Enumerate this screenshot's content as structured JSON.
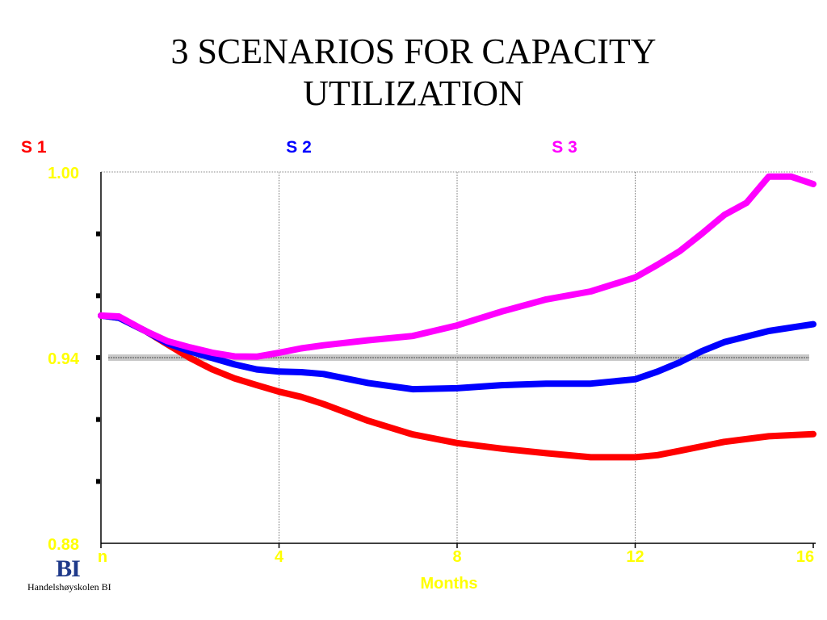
{
  "title_lines": [
    "3 SCENARIOS FOR CAPACITY",
    "UTILIZATION"
  ],
  "logo": {
    "mark": "BI",
    "text": "Handelshøyskolen BI"
  },
  "chart_data": {
    "type": "line",
    "title": "3 SCENARIOS FOR CAPACITY UTILIZATION",
    "xlabel": "Months",
    "ylabel": "",
    "xlim": [
      0,
      16
    ],
    "ylim": [
      0.88,
      1.0
    ],
    "x_ticks": [
      {
        "value": 0,
        "label": "n"
      },
      {
        "value": 4,
        "label": "4"
      },
      {
        "value": 8,
        "label": "8"
      },
      {
        "value": 12,
        "label": "12"
      },
      {
        "value": 16,
        "label": "16"
      }
    ],
    "y_ticks": [
      {
        "value": 1.0,
        "label": "1.00"
      },
      {
        "value": 0.94,
        "label": "0.94"
      },
      {
        "value": 0.88,
        "label": "0.88"
      }
    ],
    "reference_line": 0.94,
    "grid": "vertical dotted lines at x ticks",
    "legend_placement": "top, above plot",
    "series": [
      {
        "name": "S 1",
        "color": "#ff0000",
        "x": [
          0,
          0.4,
          1,
          1.5,
          2,
          2.5,
          3,
          3.5,
          4,
          4.5,
          5,
          6,
          7,
          8,
          9,
          10,
          11,
          12,
          12.5,
          13,
          14,
          15,
          16
        ],
        "y": [
          0.9536,
          0.9529,
          0.9486,
          0.9442,
          0.9399,
          0.9362,
          0.9333,
          0.9311,
          0.929,
          0.9273,
          0.925,
          0.9196,
          0.9152,
          0.9124,
          0.9106,
          0.9091,
          0.9078,
          0.9078,
          0.9085,
          0.9099,
          0.9128,
          0.9146,
          0.9153
        ]
      },
      {
        "name": "S 2",
        "color": "#0000ff",
        "x": [
          0,
          0.4,
          1,
          1.5,
          2,
          2.5,
          3,
          3.5,
          4,
          4.5,
          5,
          6,
          7,
          8,
          9,
          10,
          11,
          12,
          12.5,
          13,
          13.5,
          14,
          15,
          16
        ],
        "y": [
          0.9536,
          0.9529,
          0.9486,
          0.9446,
          0.942,
          0.9399,
          0.9378,
          0.9362,
          0.9355,
          0.9353,
          0.9347,
          0.9318,
          0.9298,
          0.9301,
          0.9311,
          0.9316,
          0.9316,
          0.933,
          0.9355,
          0.9385,
          0.9421,
          0.945,
          0.9486,
          0.9508
        ]
      },
      {
        "name": "S 3",
        "color": "#ff00ff",
        "x": [
          0,
          0.4,
          1,
          1.5,
          2,
          2.5,
          3,
          3.5,
          4,
          4.5,
          5,
          6,
          7,
          8,
          9,
          10,
          11,
          12,
          12.5,
          13,
          13.5,
          14,
          14.5,
          15,
          15.5,
          16
        ],
        "y": [
          0.9536,
          0.9533,
          0.9486,
          0.9453,
          0.9433,
          0.9416,
          0.9404,
          0.9403,
          0.9416,
          0.943,
          0.944,
          0.9456,
          0.947,
          0.9504,
          0.9549,
          0.9588,
          0.9614,
          0.9659,
          0.97,
          0.9744,
          0.9801,
          0.9861,
          0.99,
          0.9985,
          0.9985,
          0.9961
        ]
      }
    ]
  }
}
